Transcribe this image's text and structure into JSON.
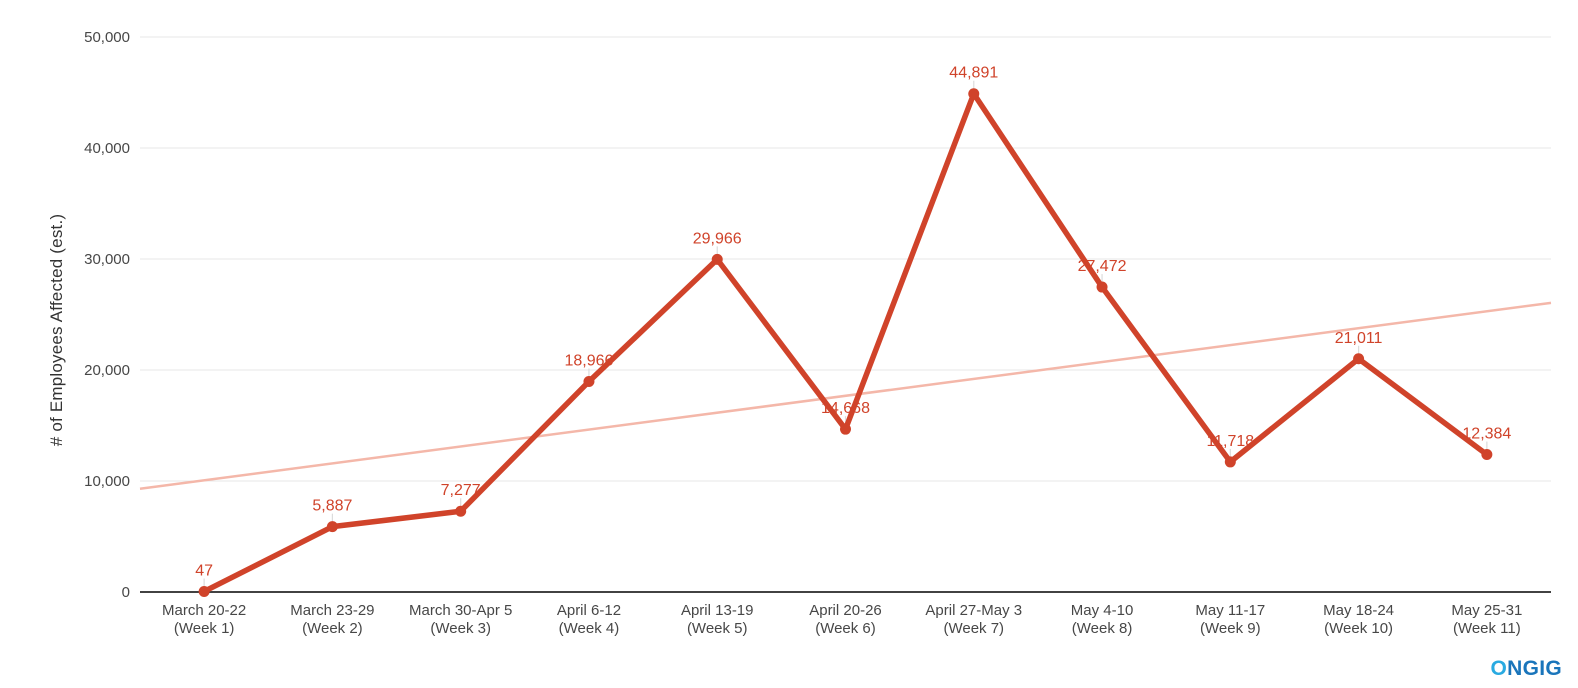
{
  "chart_data": {
    "type": "line",
    "title": "",
    "xlabel": "",
    "ylabel": "# of Employees Affected (est.)",
    "ylim": [
      0,
      50000
    ],
    "ytick_step": 10000,
    "ytick_labels": [
      "0",
      "10,000",
      "20,000",
      "30,000",
      "40,000",
      "50,000"
    ],
    "grid": true,
    "legend_position": "none",
    "categories": [
      "March 20-22\n(Week 1)",
      "March 23-29\n(Week 2)",
      "March 30-Apr 5\n(Week 3)",
      "April 6-12\n(Week 4)",
      "April 13-19\n(Week 5)",
      "April 20-26\n(Week 6)",
      "April 27-May 3\n(Week 7)",
      "May 4-10\n(Week 8)",
      "May 11-17\n(Week 9)",
      "May 18-24\n(Week 10)",
      "May 25-31\n(Week 11)"
    ],
    "series": [
      {
        "name": "# of Employees Affected (est.)",
        "color": "#d0432a",
        "values": [
          47,
          5887,
          7277,
          18966,
          29966,
          14668,
          44891,
          27472,
          11718,
          21011,
          12384
        ],
        "point_labels": [
          "47",
          "5,887",
          "7,277",
          "18,966",
          "29,966",
          "14,668",
          "44,891",
          "27,472",
          "11,718",
          "21,011",
          "12,384"
        ]
      }
    ],
    "trendline": {
      "color": "#f4b7a9",
      "start_value": 9300,
      "end_value": 26050
    }
  },
  "colors": {
    "grid": "#e7e7e7",
    "baseline": "#424242",
    "axis_text": "#474747",
    "label_connector": "#dcdcdc",
    "background": "#ffffff"
  },
  "logo": {
    "prefix": "O",
    "rest": "NGIG",
    "prefix_color": "#29aae1",
    "rest_color": "#1a75bb"
  }
}
